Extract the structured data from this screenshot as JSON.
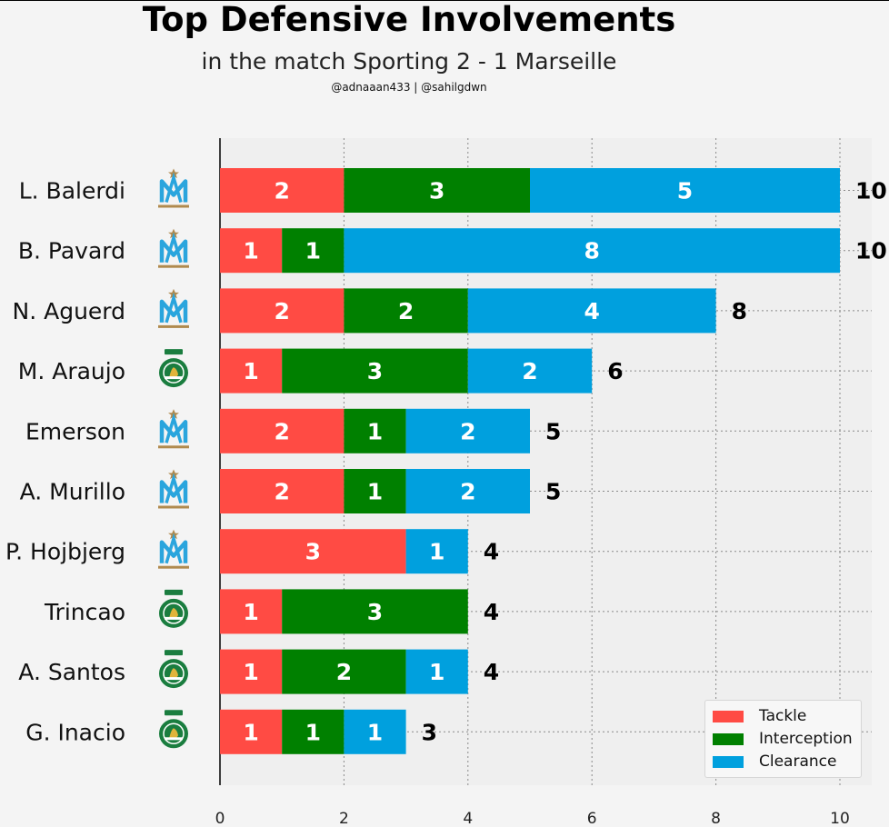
{
  "header": {
    "title": "Top Defensive Involvements",
    "subtitle": "in the match Sporting 2 - 1 Marseille",
    "credits": "@adnaaan433  | @sahilgdwn"
  },
  "colors": {
    "tackle": "#ff4b44",
    "interception": "#008000",
    "clearance": "#00a0de",
    "background": "#f4f4f4",
    "plot_background": "#efefef",
    "sporting_green": "#1a7d3f",
    "marseille_blue": "#2aa5dd",
    "marseille_gold": "#b08a4e"
  },
  "chart_data": {
    "type": "bar",
    "orientation": "horizontal",
    "stacked": true,
    "title": "Top Defensive Involvements",
    "subtitle": "in the match Sporting 2 - 1 Marseille",
    "categories": [
      "L. Balerdi",
      "B. Pavard",
      "N. Aguerd",
      "M. Araujo",
      "Emerson",
      "A. Murillo",
      "P. Hojbjerg",
      "Trincao",
      "A. Santos",
      "G. Inacio"
    ],
    "teams": [
      "marseille",
      "marseille",
      "marseille",
      "sporting",
      "marseille",
      "marseille",
      "marseille",
      "sporting",
      "sporting",
      "sporting"
    ],
    "series": [
      {
        "name": "Tackle",
        "values": [
          2,
          1,
          2,
          1,
          2,
          2,
          3,
          1,
          1,
          1
        ]
      },
      {
        "name": "Interception",
        "values": [
          3,
          1,
          2,
          3,
          1,
          1,
          0,
          3,
          2,
          1
        ]
      },
      {
        "name": "Clearance",
        "values": [
          5,
          8,
          4,
          2,
          2,
          2,
          1,
          0,
          1,
          1
        ]
      }
    ],
    "totals": [
      10,
      10,
      8,
      6,
      5,
      5,
      4,
      4,
      4,
      3
    ],
    "xlim": [
      0,
      10.5
    ],
    "xticks": [
      0,
      2,
      4,
      6,
      8,
      10
    ],
    "grid": true,
    "legend": "bottom-right",
    "xlabel": "",
    "ylabel": ""
  }
}
